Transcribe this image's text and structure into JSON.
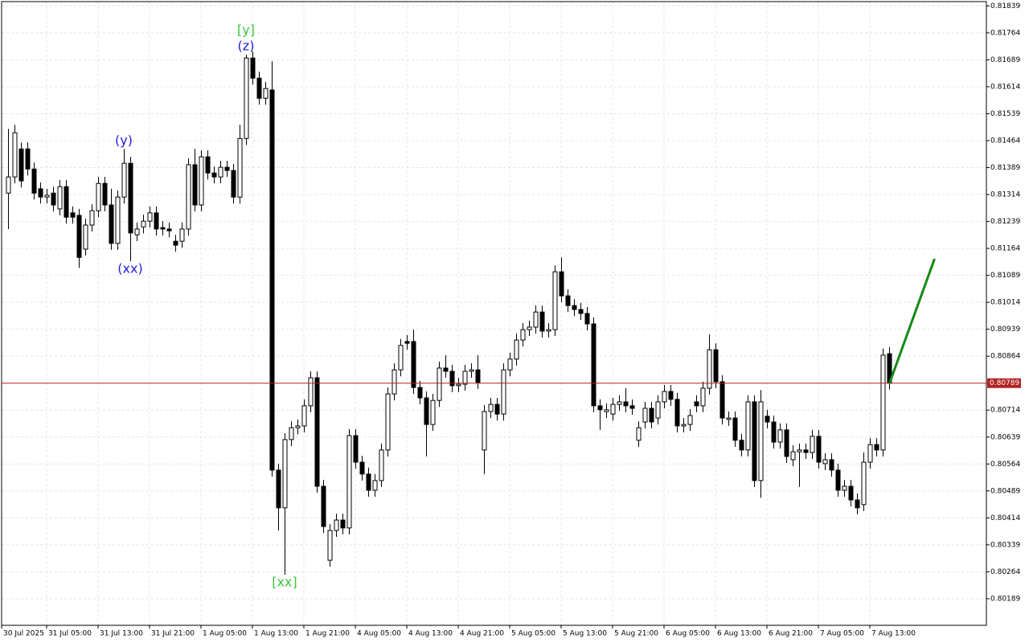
{
  "chart_data": {
    "type": "candlestick",
    "categories": [
      "30 Jul 2025",
      null,
      null,
      null,
      null,
      null,
      null,
      "31 Jul 05:00",
      null,
      null,
      null,
      null,
      null,
      null,
      null,
      "31 Jul 13:00",
      null,
      null,
      null,
      null,
      null,
      null,
      null,
      "31 Jul 21:00",
      null,
      null,
      null,
      null,
      null,
      null,
      null,
      "1 Aug 05:00",
      null,
      null,
      null,
      null,
      null,
      null,
      null,
      "1 Aug 13:00",
      null,
      null,
      null,
      null,
      null,
      null,
      null,
      "1 Aug 21:00",
      null,
      null,
      null,
      null,
      null,
      null,
      null,
      "4 Aug 05:00",
      null,
      null,
      null,
      null,
      null,
      null,
      null,
      "4 Aug 13:00",
      null,
      null,
      null,
      null,
      null,
      null,
      null,
      "4 Aug 21:00",
      null,
      null,
      null,
      null,
      null,
      null,
      null,
      "5 Aug 05:00",
      null,
      null,
      null,
      null,
      null,
      null,
      null,
      "5 Aug 13:00",
      null,
      null,
      null,
      null,
      null,
      null,
      null,
      "5 Aug 21:00",
      null,
      null,
      null,
      null,
      null,
      null,
      null,
      "6 Aug 05:00",
      null,
      null,
      null,
      null,
      null,
      null,
      null,
      "6 Aug 13:00",
      null,
      null,
      null,
      null,
      null,
      null,
      null,
      "6 Aug 21:00",
      null,
      null,
      null,
      null,
      null,
      null,
      null,
      "7 Aug 05:00",
      null,
      null,
      null,
      null,
      null,
      null,
      null,
      "7 Aug 13:00",
      null,
      null
    ],
    "open": [
      0.81318,
      0.81363,
      0.81441,
      0.81441,
      0.81385,
      0.8133,
      0.81307,
      0.81318,
      0.81274,
      0.81336,
      0.81263,
      0.81256,
      0.81162,
      0.81229,
      0.81269,
      0.81345,
      0.81285,
      0.81178,
      0.81307,
      0.81401,
      0.81202,
      0.81224,
      0.8124,
      0.81263,
      0.81222,
      0.81218,
      0.81184,
      0.81184,
      0.81218,
      0.81397,
      0.81285,
      0.81419,
      0.81374,
      0.81363,
      0.8139,
      0.81381,
      0.81307,
      0.8147,
      0.81694,
      0.81638,
      0.81582,
      0.81605,
      0.80547,
      0.80442,
      0.80632,
      0.80665,
      0.8067,
      0.80726,
      0.80804,
      0.80502,
      0.80296,
      0.80379,
      0.80408,
      0.80386,
      0.80643,
      0.80569,
      0.80536,
      0.80491,
      0.80518,
      0.80603,
      0.80759,
      0.80826,
      0.80905,
      0.80905,
      0.80777,
      0.80748,
      0.80674,
      0.80741,
      0.80831,
      0.80822,
      0.80782,
      0.80786,
      0.80822,
      0.80826,
      0.80603,
      0.8071,
      0.8073,
      0.80703,
      0.80826,
      0.80856,
      0.80909,
      0.80938,
      0.80945,
      0.80987,
      0.80934,
      0.80938,
      0.81099,
      0.81032,
      0.81005,
      0.80994,
      0.80983,
      0.80954,
      0.80726,
      0.8071,
      0.80703,
      0.8073,
      0.80737,
      0.80726,
      0.8063,
      0.80681,
      0.80719,
      0.80692,
      0.80737,
      0.80766,
      0.80744,
      0.8067,
      0.80674,
      0.80737,
      0.80726,
      0.80775,
      0.80882,
      0.80793,
      0.80688,
      0.80692,
      0.8063,
      0.80603,
      0.80737,
      0.80518,
      0.80697,
      0.80681,
      0.80625,
      0.80659,
      0.80576,
      0.80598,
      0.80603,
      0.80596,
      0.80641,
      0.80565,
      0.80576,
      0.80547,
      0.80491,
      0.80502,
      0.80464,
      0.80451,
      0.80569,
      0.80618,
      0.80603,
      0.80871
    ],
    "high": [
      0.81497,
      0.81508,
      0.81459,
      0.81459,
      0.81403,
      0.81348,
      0.8133,
      0.81336,
      0.81354,
      0.81354,
      0.81281,
      0.81274,
      0.81247,
      0.81287,
      0.81363,
      0.81363,
      0.8133,
      0.81325,
      0.81441,
      0.81419,
      0.81236,
      0.81258,
      0.81281,
      0.81281,
      0.8124,
      0.81236,
      0.81202,
      0.81236,
      0.81415,
      0.81441,
      0.81437,
      0.81437,
      0.81392,
      0.81408,
      0.81408,
      0.81399,
      0.81508,
      0.81703,
      0.81712,
      0.81656,
      0.81627,
      0.81685,
      0.80565,
      0.8065,
      0.80683,
      0.80688,
      0.80744,
      0.80822,
      0.80822,
      0.8052,
      0.80397,
      0.80426,
      0.80426,
      0.80661,
      0.80661,
      0.80587,
      0.80554,
      0.80536,
      0.80621,
      0.80777,
      0.80844,
      0.80912,
      0.80923,
      0.80938,
      0.80795,
      0.80766,
      0.80759,
      0.80849,
      0.80867,
      0.8084,
      0.80804,
      0.8084,
      0.80844,
      0.80867,
      0.80728,
      0.80748,
      0.80748,
      0.80844,
      0.80874,
      0.80927,
      0.80956,
      0.80963,
      0.81005,
      0.81005,
      0.80956,
      0.81117,
      0.81139,
      0.8105,
      0.81023,
      0.81012,
      0.81001,
      0.80972,
      0.80744,
      0.80733,
      0.80748,
      0.80755,
      0.80775,
      0.80744,
      0.80683,
      0.80737,
      0.80737,
      0.80755,
      0.80784,
      0.80784,
      0.80762,
      0.80692,
      0.80717,
      0.80755,
      0.80793,
      0.80925,
      0.809,
      0.80811,
      0.8071,
      0.8071,
      0.80648,
      0.80755,
      0.80755,
      0.8077,
      0.80715,
      0.80699,
      0.80677,
      0.80677,
      0.80616,
      0.80621,
      0.80621,
      0.80659,
      0.80659,
      0.80594,
      0.80594,
      0.80565,
      0.8052,
      0.8052,
      0.80482,
      0.80596,
      0.80636,
      0.80636,
      0.80885,
      0.80889
    ],
    "low": [
      0.81218,
      0.81345,
      0.81334,
      0.81367,
      0.813,
      0.81289,
      0.81289,
      0.81267,
      0.81256,
      0.81233,
      0.81233,
      0.8111,
      0.81144,
      0.81211,
      0.81251,
      0.81267,
      0.8116,
      0.8116,
      0.81289,
      0.81128,
      0.81184,
      0.81206,
      0.81222,
      0.812,
      0.812,
      0.81195,
      0.81155,
      0.81166,
      0.812,
      0.81267,
      0.81267,
      0.81356,
      0.81345,
      0.81345,
      0.81363,
      0.81289,
      0.81289,
      0.81452,
      0.8162,
      0.81564,
      0.81564,
      0.80529,
      0.80379,
      0.80256,
      0.80614,
      0.80647,
      0.80652,
      0.80708,
      0.80484,
      0.80372,
      0.80278,
      0.80361,
      0.80368,
      0.80368,
      0.80551,
      0.80518,
      0.80473,
      0.80473,
      0.805,
      0.80585,
      0.80741,
      0.80808,
      0.80882,
      0.80759,
      0.8073,
      0.80585,
      0.80656,
      0.80723,
      0.80804,
      0.80764,
      0.80764,
      0.80768,
      0.80804,
      0.80773,
      0.80536,
      0.80692,
      0.80685,
      0.80685,
      0.80808,
      0.80838,
      0.80891,
      0.8092,
      0.80927,
      0.80916,
      0.80916,
      0.8092,
      0.81014,
      0.80987,
      0.80976,
      0.80965,
      0.80936,
      0.80708,
      0.80659,
      0.80692,
      0.80685,
      0.80712,
      0.80708,
      0.80701,
      0.80612,
      0.80663,
      0.80663,
      0.80674,
      0.80719,
      0.80726,
      0.80652,
      0.80652,
      0.80656,
      0.80708,
      0.80708,
      0.80757,
      0.80775,
      0.80674,
      0.8067,
      0.80612,
      0.80585,
      0.80585,
      0.805,
      0.8047,
      0.80663,
      0.80607,
      0.80607,
      0.80567,
      0.80558,
      0.805,
      0.80578,
      0.80578,
      0.80551,
      0.80547,
      0.80529,
      0.80473,
      0.80473,
      0.80446,
      0.80424,
      0.80433,
      0.80551,
      0.80585,
      0.80585,
      0.80771
    ],
    "close": [
      0.81363,
      0.81486,
      0.81352,
      0.81385,
      0.81318,
      0.81307,
      0.81312,
      0.81285,
      0.81336,
      0.81251,
      0.81251,
      0.81139,
      0.81229,
      0.81269,
      0.81345,
      0.81285,
      0.81178,
      0.81307,
      0.81401,
      0.81207,
      0.81218,
      0.8124,
      0.81263,
      0.81218,
      0.81218,
      0.81213,
      0.81173,
      0.81218,
      0.81397,
      0.81285,
      0.81419,
      0.81374,
      0.81363,
      0.8139,
      0.81381,
      0.81307,
      0.8147,
      0.81694,
      0.81638,
      0.81582,
      0.81609,
      0.80547,
      0.80442,
      0.80632,
      0.80665,
      0.8067,
      0.80726,
      0.80804,
      0.80502,
      0.8039,
      0.80379,
      0.80408,
      0.80386,
      0.80643,
      0.80569,
      0.80536,
      0.80491,
      0.80518,
      0.80603,
      0.80759,
      0.80826,
      0.80894,
      0.809,
      0.80777,
      0.80748,
      0.80674,
      0.80741,
      0.80831,
      0.80822,
      0.80782,
      0.80786,
      0.80822,
      0.80826,
      0.80791,
      0.8071,
      0.8073,
      0.80703,
      0.80826,
      0.80856,
      0.80909,
      0.80938,
      0.80945,
      0.80987,
      0.80934,
      0.80938,
      0.81099,
      0.81032,
      0.81005,
      0.80994,
      0.80983,
      0.80954,
      0.80726,
      0.80715,
      0.80715,
      0.8073,
      0.80737,
      0.80726,
      0.80719,
      0.80665,
      0.80719,
      0.80681,
      0.80737,
      0.80766,
      0.80744,
      0.8067,
      0.80674,
      0.80699,
      0.80726,
      0.80775,
      0.80882,
      0.80793,
      0.80692,
      0.80692,
      0.8063,
      0.80603,
      0.80737,
      0.80518,
      0.80737,
      0.80681,
      0.80625,
      0.80659,
      0.80585,
      0.80598,
      0.80603,
      0.80596,
      0.80641,
      0.80569,
      0.80576,
      0.80547,
      0.80491,
      0.80502,
      0.80464,
      0.80442,
      0.80569,
      0.80618,
      0.80603,
      0.80867,
      0.80789
    ],
    "up_color": "#ffffff",
    "down_color": "#000000",
    "wick_color": "#000000",
    "ylim": [
      0.80115,
      0.81851
    ],
    "yticks": [
      0.81839,
      0.81764,
      0.81689,
      0.81614,
      0.81539,
      0.81464,
      0.81389,
      0.81314,
      0.81239,
      0.81164,
      0.81089,
      0.81014,
      0.80939,
      0.80864,
      0.80714,
      0.80639,
      0.80564,
      0.80489,
      0.80414,
      0.80339,
      0.80264,
      0.80189
    ],
    "grid": true,
    "current_price": {
      "value": 0.80789,
      "color": "#b22222"
    },
    "forecast": {
      "color": "#138a13",
      "x": [
        137,
        144
      ],
      "values": [
        0.80789,
        0.81135
      ]
    },
    "annotations": [
      {
        "text": "(z)",
        "index": 37,
        "position": "above",
        "color": "#1f1fd6"
      },
      {
        "text": "[y]",
        "index": 37,
        "position": "above",
        "color": "#3cc83c"
      },
      {
        "text": "(y)",
        "index": 18,
        "position": "above",
        "color": "#1f1fd6"
      },
      {
        "text": "(xx)",
        "index": 19,
        "position": "below",
        "color": "#1f1fd6"
      },
      {
        "text": "[xx]",
        "index": 43,
        "position": "below",
        "color": "#3cc83c"
      }
    ]
  }
}
